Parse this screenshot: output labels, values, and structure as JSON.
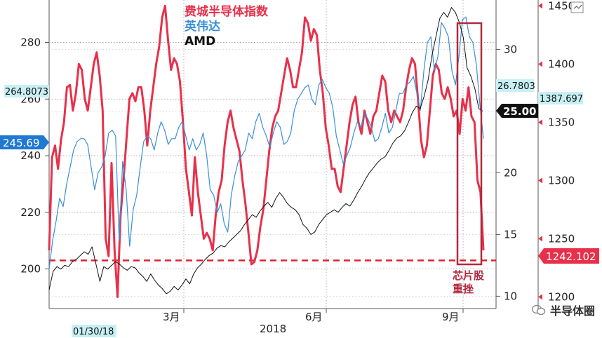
{
  "chart_data": {
    "type": "line",
    "title": "",
    "legend": [
      "费城半导体指数",
      "英伟达",
      "AMD"
    ],
    "legend_placement": "top-left",
    "x_ticks": [
      "3月",
      "6月",
      "9月"
    ],
    "x_year_label": "2018",
    "x_start_label": "01/30/18",
    "axes": {
      "left": {
        "ticks": [
          "200",
          "220",
          "240",
          "260",
          "280"
        ],
        "range": [
          186,
          295
        ]
      },
      "right1": {
        "ticks": [
          "10",
          "15",
          "20",
          "25",
          "30"
        ],
        "range": [
          9,
          34
        ]
      },
      "right2": {
        "ticks": [
          "1200",
          "1250",
          "1300",
          "1350",
          "1400",
          "1450"
        ],
        "range": [
          1190,
          1455
        ]
      }
    },
    "series": [
      {
        "name": "费城半导体指数",
        "axis": "right2",
        "color": "#e8304a",
        "values": [
          1240,
          1320,
          1330,
          1310,
          1335,
          1350,
          1380,
          1382,
          1360,
          1375,
          1400,
          1395,
          1370,
          1360,
          1380,
          1400,
          1410,
          1390,
          1360,
          1250,
          1235,
          1315,
          1240,
          1200,
          1270,
          1300,
          1335,
          1370,
          1375,
          1368,
          1380,
          1380,
          1360,
          1330,
          1360,
          1380,
          1400,
          1415,
          1440,
          1450,
          1420,
          1395,
          1405,
          1400,
          1385,
          1350,
          1310,
          1290,
          1270,
          1320,
          1290,
          1270,
          1250,
          1255,
          1250,
          1240,
          1270,
          1290,
          1300,
          1330,
          1350,
          1360,
          1345,
          1335,
          1325,
          1300,
          1280,
          1255,
          1228,
          1230,
          1240,
          1260,
          1275,
          1300,
          1325,
          1345,
          1355,
          1360,
          1375,
          1390,
          1405,
          1395,
          1380,
          1380,
          1395,
          1410,
          1440,
          1435,
          1420,
          1430,
          1425,
          1395,
          1375,
          1345,
          1330,
          1310,
          1310,
          1295,
          1290,
          1310,
          1330,
          1350,
          1365,
          1372,
          1350,
          1340,
          1360,
          1350,
          1340,
          1355,
          1360,
          1375,
          1390,
          1385,
          1360,
          1350,
          1360,
          1355,
          1350,
          1360,
          1380,
          1395,
          1405,
          1400,
          1370,
          1335,
          1320,
          1330,
          1360,
          1390,
          1400,
          1395,
          1375,
          1370,
          1380,
          1370,
          1355,
          1360,
          1340,
          1370,
          1360,
          1380,
          1355,
          1350,
          1300,
          1290,
          1240
        ]
      },
      {
        "name": "英伟达",
        "axis": "left",
        "color": "#3a8fd6",
        "values": [
          200,
          210,
          217,
          225,
          222,
          230,
          236,
          242,
          245,
          246,
          246,
          244,
          236,
          228,
          234,
          236,
          240,
          248,
          249,
          247,
          210,
          238,
          228,
          208,
          221,
          226,
          236,
          245,
          247,
          246,
          242,
          248,
          252,
          249,
          244,
          246,
          246,
          250,
          252,
          247,
          242,
          246,
          242,
          244,
          248,
          240,
          228,
          226,
          220,
          223,
          216,
          213,
          226,
          233,
          238,
          240,
          242,
          248,
          246,
          252,
          255,
          250,
          247,
          243,
          248,
          252,
          250,
          244,
          245,
          248,
          256,
          260,
          262,
          264,
          265,
          260,
          258,
          265,
          267,
          264,
          262,
          257,
          247,
          242,
          237,
          240,
          243,
          248,
          252,
          250,
          255,
          253,
          250,
          245,
          246,
          250,
          255,
          248,
          250,
          256,
          262,
          262,
          265,
          266,
          268,
          262,
          256,
          270,
          280,
          282,
          270,
          275,
          287,
          285,
          282,
          270,
          265,
          275,
          288,
          289,
          282,
          280,
          272,
          258,
          246
        ]
      },
      {
        "name": "AMD",
        "axis": "right1",
        "color": "#111111",
        "values": [
          10.5,
          12.0,
          12.4,
          12.2,
          12.5,
          12.4,
          12.8,
          13.0,
          13.3,
          13.6,
          13.4,
          14.0,
          12.6,
          11.2,
          12.4,
          12.2,
          12.5,
          12.8,
          12.6,
          12.3,
          12.1,
          12.4,
          12.3,
          11.9,
          11.6,
          11.2,
          11.8,
          11.3,
          10.9,
          10.6,
          10.2,
          10.4,
          10.8,
          10.5,
          10.9,
          11.4,
          11.0,
          11.8,
          12.3,
          12.6,
          13.0,
          13.3,
          13.5,
          13.9,
          14.1,
          14.0,
          14.4,
          14.7,
          15.0,
          15.3,
          15.8,
          16.2,
          16.6,
          16.4,
          16.9,
          17.3,
          17.6,
          17.2,
          17.9,
          18.4,
          18.0,
          17.5,
          17.2,
          17.0,
          16.6,
          15.8,
          15.5,
          15.0,
          15.2,
          15.8,
          16.2,
          16.6,
          16.8,
          17.0,
          16.8,
          17.2,
          17.5,
          17.3,
          17.8,
          18.4,
          18.9,
          19.5,
          20.0,
          20.4,
          20.8,
          21.1,
          21.3,
          21.8,
          22.4,
          22.8,
          23.0,
          23.4,
          24.1,
          24.9,
          25.4,
          25.2,
          26.2,
          27.5,
          29.5,
          31.0,
          32.5,
          33.0,
          32.6,
          33.4,
          33.0,
          32.2,
          31.0,
          28.5,
          27.8,
          26.8,
          25.2,
          25.0
        ]
      }
    ],
    "badges": {
      "left_value": "245.69",
      "left_start": "264.8073",
      "right1_value": "25.00",
      "right1_start": "26.7803",
      "right2_start": "1387.697",
      "right2_value": "1242.102"
    },
    "reference_line": {
      "axis": "left",
      "value": 203,
      "color": "#e02030",
      "style": "dashed"
    },
    "highlight_box": {
      "color": "#b0283c"
    },
    "annotation": [
      "芯片股",
      "重挫"
    ],
    "grid": true
  },
  "watermark": {
    "text": "半导体圈",
    "icon": "wechat-icon"
  }
}
